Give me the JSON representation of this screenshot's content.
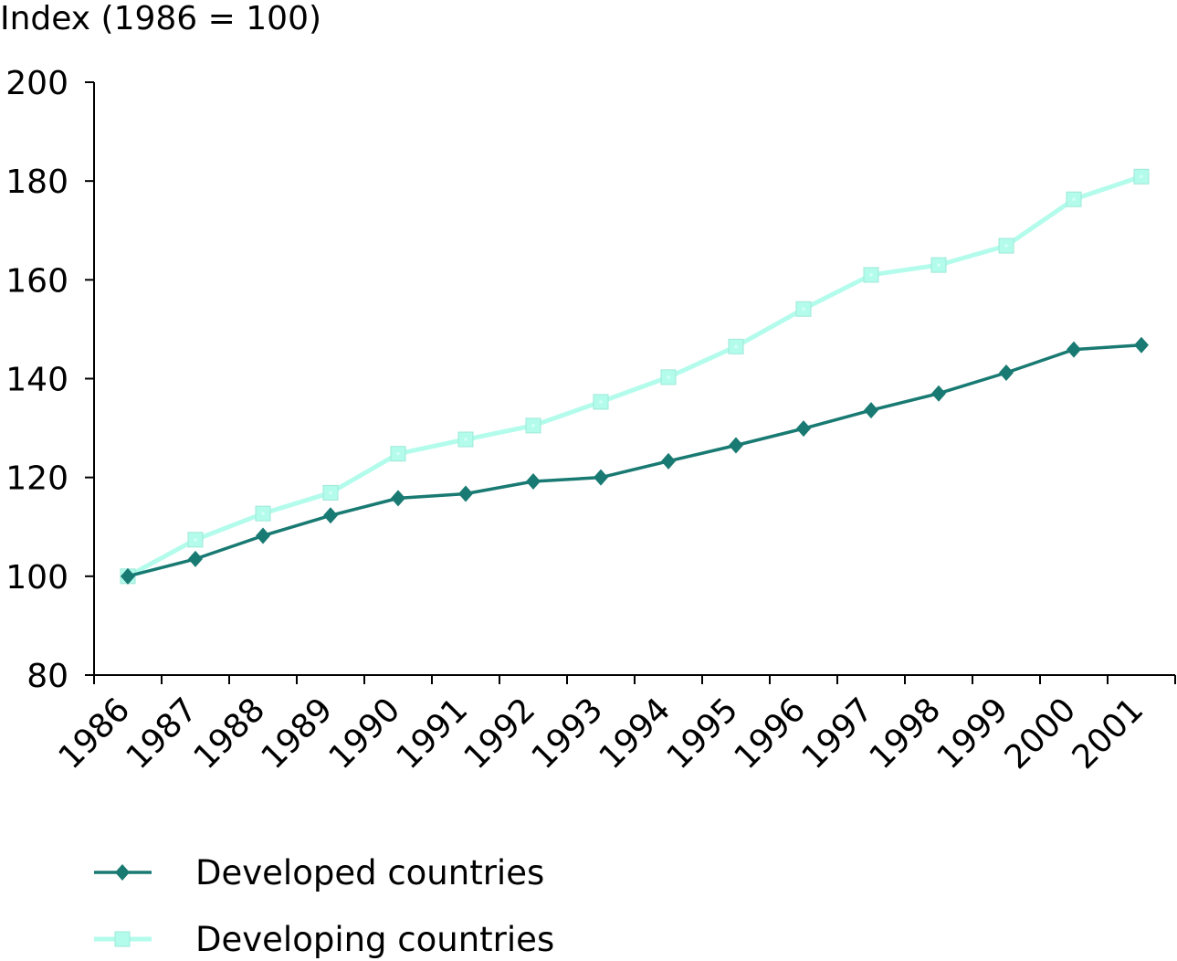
{
  "chart_data": {
    "type": "line",
    "title": "",
    "xlabel": "",
    "ylabel": "Index (1986 = 100)",
    "categories": [
      "1986",
      "1987",
      "1988",
      "1989",
      "1990",
      "1991",
      "1992",
      "1993",
      "1994",
      "1995",
      "1996",
      "1997",
      "1998",
      "1999",
      "2000",
      "2001"
    ],
    "ylim": [
      80,
      200
    ],
    "yticks": [
      "80",
      "100",
      "120",
      "140",
      "160",
      "180",
      "200"
    ],
    "grid": false,
    "legend_position": "bottom",
    "series": [
      {
        "name": "Developed countries",
        "marker": "diamond",
        "color": "#187a72",
        "values": [
          100,
          103.5,
          108.2,
          112.3,
          115.8,
          116.7,
          119.2,
          120.0,
          123.3,
          126.5,
          129.9,
          133.6,
          137.0,
          141.2,
          145.9,
          146.8
        ]
      },
      {
        "name": "Developing countries",
        "marker": "square",
        "color": "#b3fcec",
        "values": [
          100,
          107.4,
          112.7,
          116.9,
          124.8,
          127.7,
          130.5,
          135.3,
          140.3,
          146.5,
          154.1,
          161.0,
          163.0,
          166.9,
          176.3,
          180.9
        ]
      }
    ]
  }
}
